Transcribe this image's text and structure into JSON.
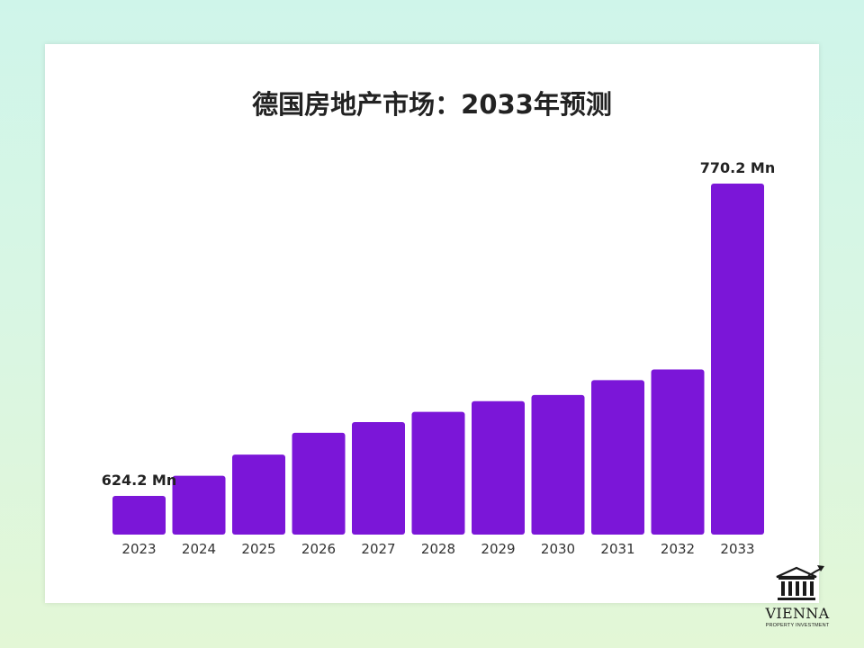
{
  "chart_data": {
    "type": "bar",
    "title": "德国房地产市场：2033年预测",
    "categories": [
      "2023",
      "2024",
      "2025",
      "2026",
      "2027",
      "2028",
      "2029",
      "2030",
      "2031",
      "2032",
      "2033"
    ],
    "values": [
      624.2,
      633.6,
      643.5,
      653.7,
      658.7,
      663.5,
      668.5,
      671.4,
      678.3,
      683.3,
      770.2
    ],
    "data_labels": {
      "first": "624.2 Mn",
      "last": "770.2 Mn"
    },
    "unit": "Mn",
    "bar_color": "#7b16d8",
    "xlabel": "",
    "ylabel": "",
    "grid": false,
    "legend": "none"
  },
  "logo": {
    "name": "VIENNA",
    "subtitle": "PROPERTY INVESTMENT",
    "icon": "bank-building-icon"
  }
}
